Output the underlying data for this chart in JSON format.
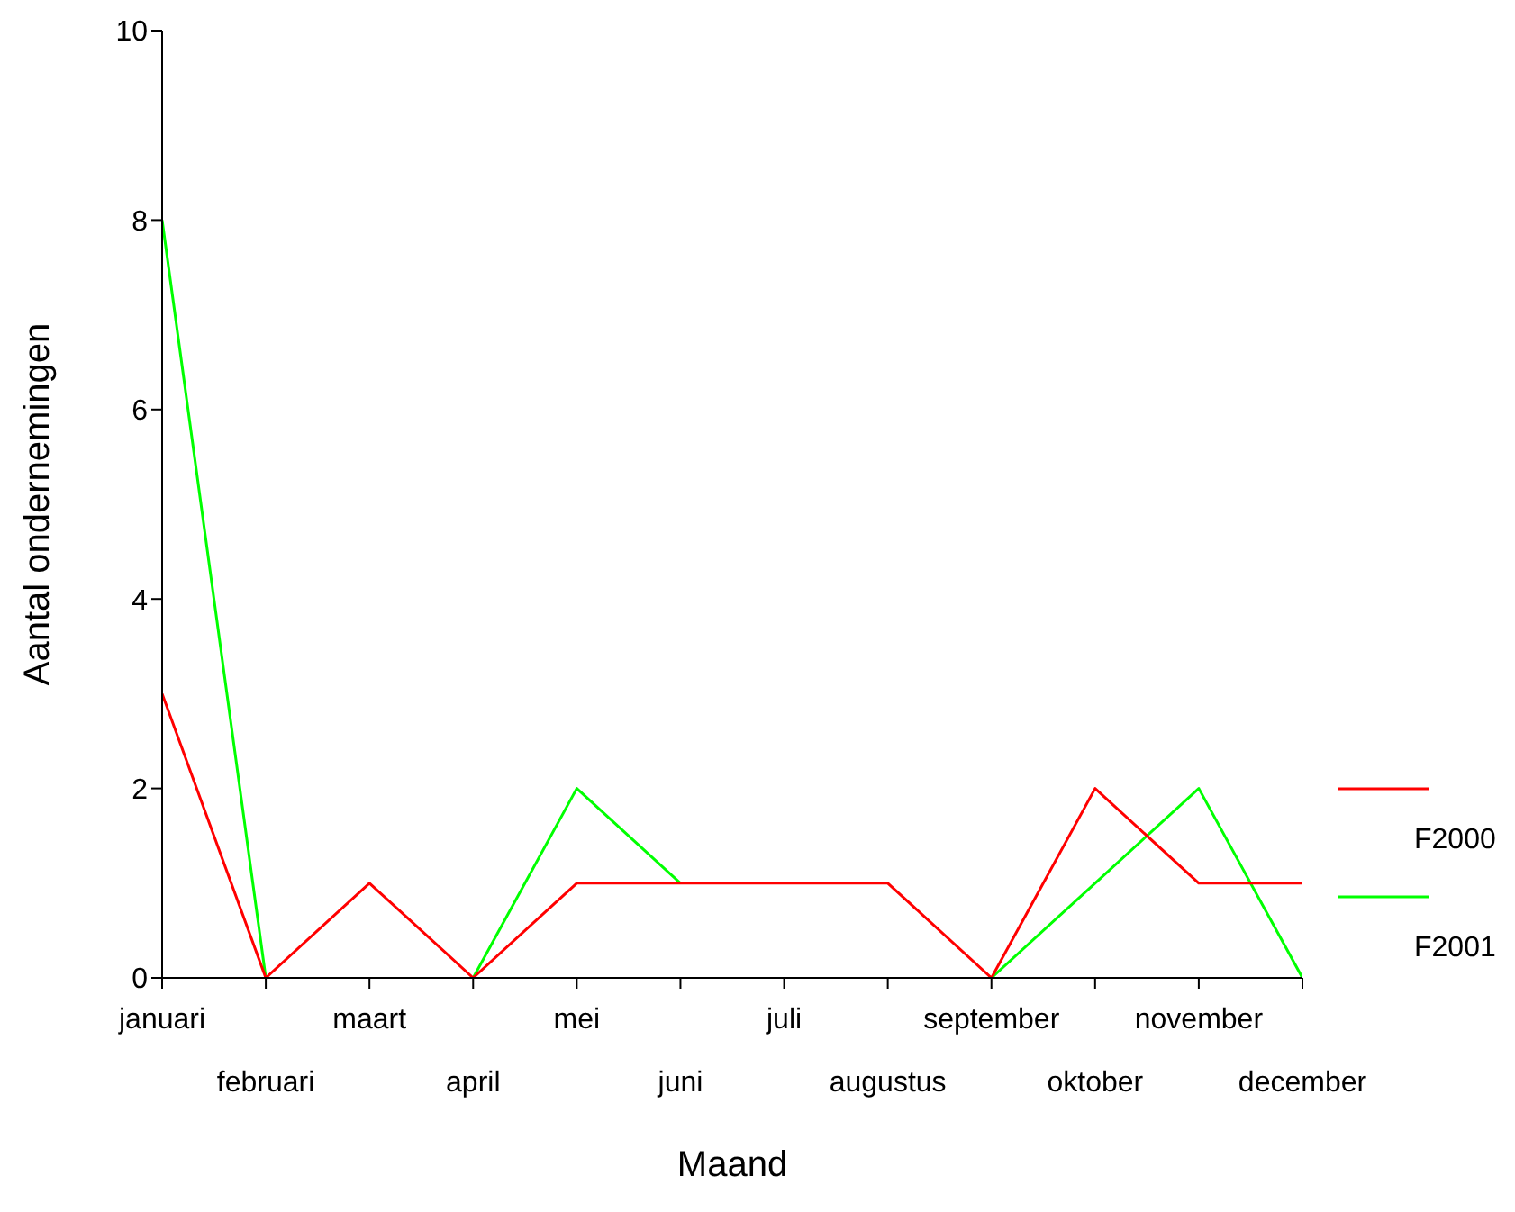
{
  "chart_data": {
    "type": "line",
    "xlabel": "Maand",
    "ylabel": "Aantal ondernemingen",
    "categories": [
      "januari",
      "februari",
      "maart",
      "april",
      "mei",
      "juni",
      "juli",
      "augustus",
      "september",
      "oktober",
      "november",
      "december"
    ],
    "series": [
      {
        "name": "F2001",
        "color": "#00ff00",
        "values": [
          8,
          0,
          null,
          0,
          2,
          1,
          null,
          null,
          0,
          1,
          2,
          0
        ]
      },
      {
        "name": "F2000",
        "color": "#ff0000",
        "values": [
          3,
          0,
          1,
          0,
          1,
          1,
          1,
          1,
          0,
          2,
          1,
          1
        ]
      }
    ],
    "ylim": [
      0,
      10
    ],
    "yticks": [
      0,
      2,
      4,
      6,
      8,
      10
    ],
    "grid": false,
    "legend": "right",
    "marker": "none",
    "line_style": "solid"
  }
}
